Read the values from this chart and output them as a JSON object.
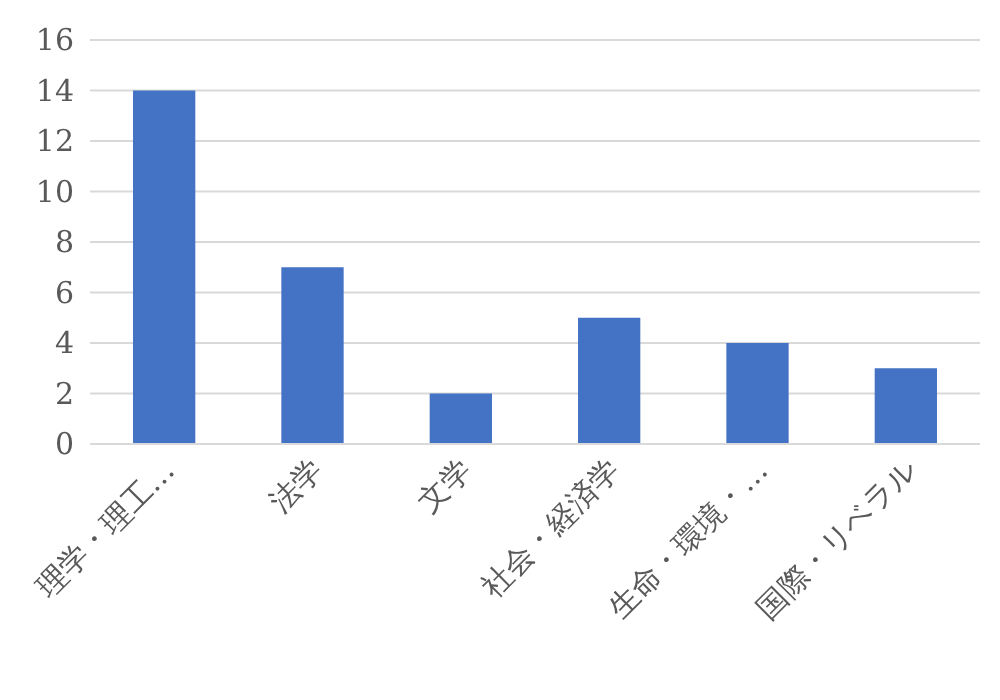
{
  "chart_data": {
    "type": "bar",
    "categories": [
      "理学・理工…",
      "法学",
      "文学",
      "社会・経済学",
      "生命・環境・…",
      "国際・リベラル"
    ],
    "values": [
      14,
      7,
      2,
      5,
      4,
      3
    ],
    "color": "#4472c4",
    "ylim": [
      0,
      16
    ],
    "yticks": [
      0,
      2,
      4,
      6,
      8,
      10,
      12,
      14,
      16
    ],
    "grid": "y"
  }
}
